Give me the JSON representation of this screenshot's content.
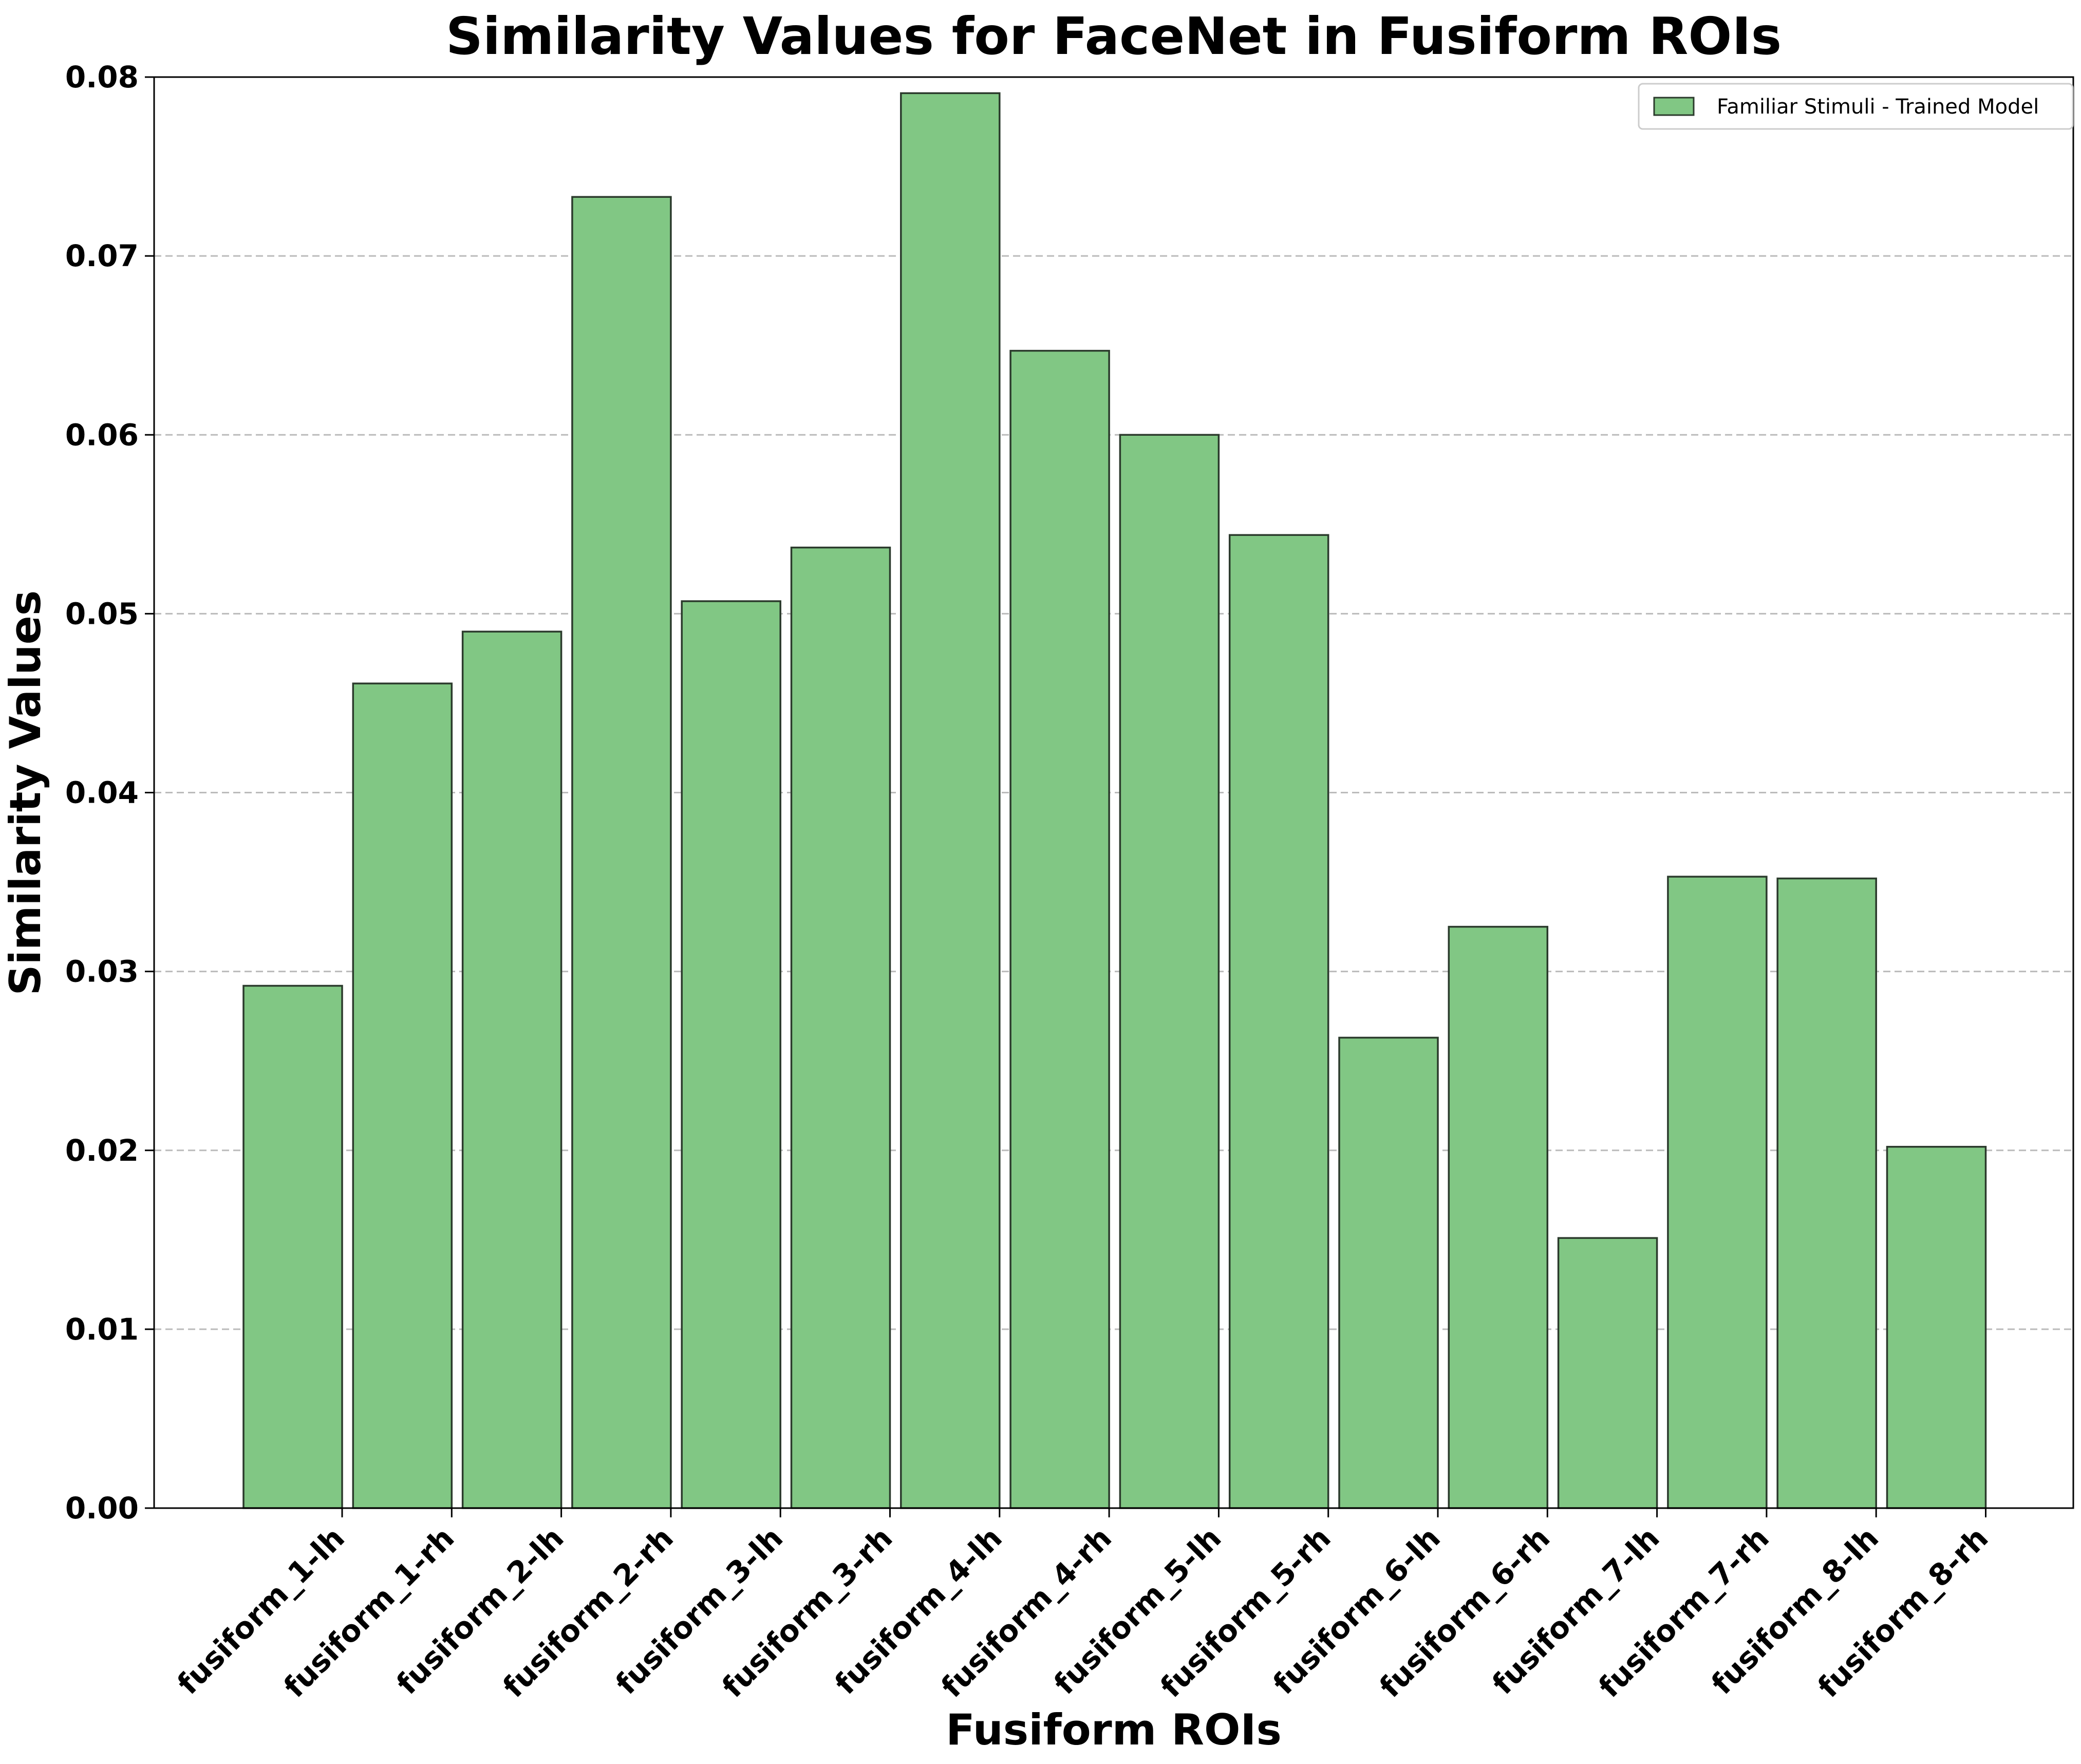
{
  "chart_data": {
    "type": "bar",
    "title": "Similarity Values for FaceNet in Fusiform ROIs",
    "xlabel": "Fusiform ROIs",
    "ylabel": "Similarity Values",
    "ylim": [
      0,
      0.08
    ],
    "yticks": [
      0.0,
      0.01,
      0.02,
      0.03,
      0.04,
      0.05,
      0.06,
      0.07,
      0.08
    ],
    "ytick_labels": [
      "0.00",
      "0.01",
      "0.02",
      "0.03",
      "0.04",
      "0.05",
      "0.06",
      "0.07",
      "0.08"
    ],
    "grid": "y-dashed",
    "legend_position": "top-right",
    "categories": [
      "fusiform_1-lh",
      "fusiform_1-rh",
      "fusiform_2-lh",
      "fusiform_2-rh",
      "fusiform_3-lh",
      "fusiform_3-rh",
      "fusiform_4-lh",
      "fusiform_4-rh",
      "fusiform_5-lh",
      "fusiform_5-rh",
      "fusiform_6-lh",
      "fusiform_6-rh",
      "fusiform_7-lh",
      "fusiform_7-rh",
      "fusiform_8-lh",
      "fusiform_8-rh"
    ],
    "series": [
      {
        "name": "Familiar Stimuli - Trained Model",
        "color": "#81c784",
        "edge_color": "#2b3a2c",
        "values": [
          0.0292,
          0.0461,
          0.049,
          0.0733,
          0.0507,
          0.0537,
          0.0791,
          0.0647,
          0.06,
          0.0544,
          0.0263,
          0.0325,
          0.0151,
          0.0353,
          0.0352,
          0.0202
        ]
      }
    ]
  }
}
